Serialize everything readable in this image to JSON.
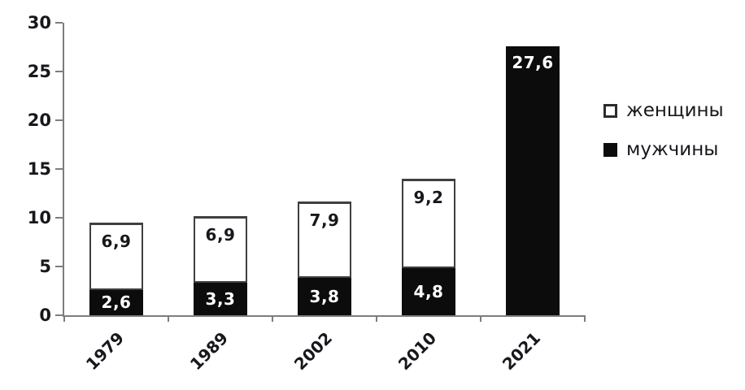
{
  "chart_data": {
    "type": "bar",
    "stacked": true,
    "title": "",
    "xlabel": "",
    "ylabel": "",
    "categories": [
      "1979",
      "1989",
      "2002",
      "2010",
      "2021"
    ],
    "series": [
      {
        "key": "men",
        "name": "мужчины",
        "values": [
          2.6,
          3.3,
          3.8,
          4.8,
          27.6
        ],
        "labels": [
          "2,6",
          "3,3",
          "3,8",
          "4,8",
          "27,6"
        ],
        "fill": "#0c0c0c",
        "label_color": "#ffffff",
        "outlined": false
      },
      {
        "key": "women",
        "name": "женщины",
        "values": [
          6.9,
          6.9,
          7.9,
          9.2,
          0
        ],
        "labels": [
          "6,9",
          "6,9",
          "7,9",
          "9,2",
          ""
        ],
        "fill": "#ffffff",
        "label_color": "#17181c",
        "outlined": true
      }
    ],
    "ylim": [
      0,
      30
    ],
    "yticks": [
      0,
      5,
      10,
      15,
      20,
      25,
      30
    ],
    "grid": false,
    "legend_position": "right",
    "legend": [
      {
        "label": "женщины",
        "swatch": "white"
      },
      {
        "label": "мужчины",
        "swatch": "black"
      }
    ],
    "axis_color": "#7d7d7d"
  }
}
